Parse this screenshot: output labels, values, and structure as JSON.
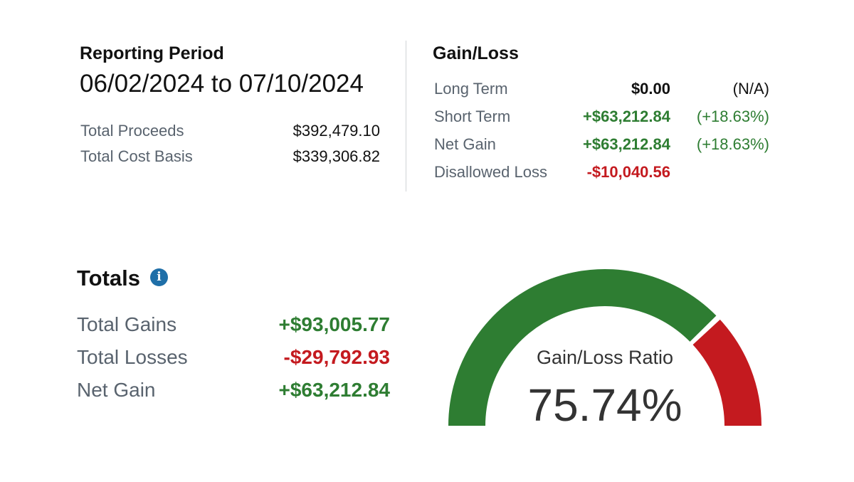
{
  "reporting_period": {
    "heading": "Reporting Period",
    "dates": "06/02/2024 to 07/10/2024",
    "rows": [
      {
        "label": "Total Proceeds",
        "value": "$392,479.10"
      },
      {
        "label": "Total Cost Basis",
        "value": "$339,306.82"
      }
    ]
  },
  "gain_loss": {
    "heading": "Gain/Loss",
    "rows": [
      {
        "label": "Long Term",
        "amount": "$0.00",
        "percent": "(N/A)"
      },
      {
        "label": "Short Term",
        "amount": "+$63,212.84",
        "percent": "(+18.63%)"
      },
      {
        "label": "Net Gain",
        "amount": "+$63,212.84",
        "percent": "(+18.63%)"
      },
      {
        "label": "Disallowed Loss",
        "amount": "-$10,040.56",
        "percent": ""
      }
    ]
  },
  "totals": {
    "heading": "Totals",
    "info_icon": "info-icon",
    "rows": [
      {
        "label": "Total Gains",
        "value": "+$93,005.77"
      },
      {
        "label": "Total Losses",
        "value": "-$29,792.93"
      },
      {
        "label": "Net Gain",
        "value": "+$63,212.84"
      }
    ]
  },
  "gauge": {
    "label": "Gain/Loss Ratio",
    "value_text": "75.74%",
    "ratio": 0.7574,
    "gain_color": "#2e7d32",
    "loss_color": "#c41a1f"
  },
  "colors": {
    "positive": "#2e7d32",
    "negative": "#c41a1f",
    "info": "#1f6fa8"
  }
}
